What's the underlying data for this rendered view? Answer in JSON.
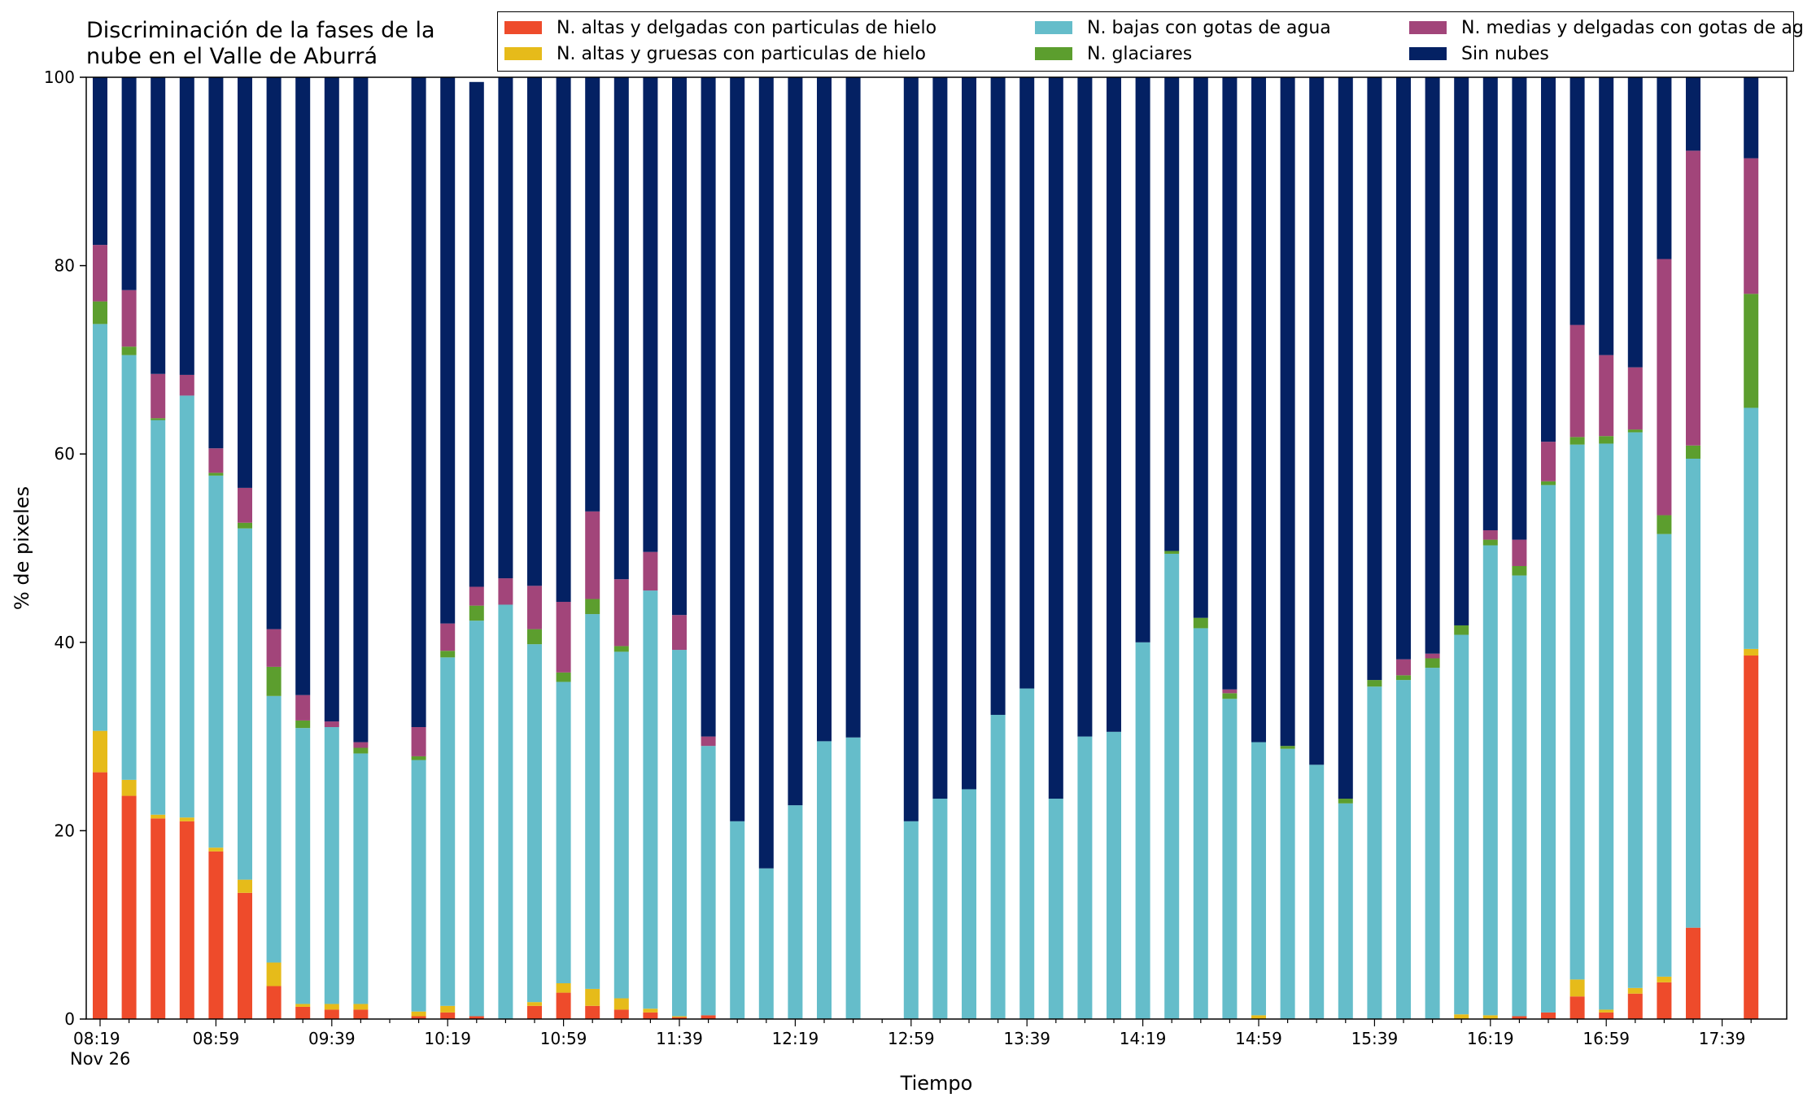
{
  "chart_data": {
    "type": "bar",
    "stacked": true,
    "title": "Discriminación de la fases de la\nnube en el Valle de Aburrá",
    "xlabel": "Tiempo",
    "ylabel": "% de pixeles",
    "ylim": [
      0,
      100
    ],
    "yticks": [
      0,
      20,
      40,
      60,
      80,
      100
    ],
    "date_label": "Nov 26",
    "legend_position": "top-right",
    "x_start": "08:19",
    "x_step_minutes": 10,
    "xticks": [
      "08:19",
      "08:59",
      "09:39",
      "10:19",
      "10:59",
      "11:39",
      "12:19",
      "12:59",
      "13:39",
      "14:19",
      "14:59",
      "15:39",
      "16:19",
      "16:59",
      "17:39"
    ],
    "x": [
      "08:19",
      "08:29",
      "08:39",
      "08:49",
      "08:59",
      "09:09",
      "09:19",
      "09:29",
      "09:39",
      "09:49",
      "09:59",
      "10:09",
      "10:19",
      "10:29",
      "10:39",
      "10:49",
      "10:59",
      "11:09",
      "11:19",
      "11:29",
      "11:39",
      "11:49",
      "11:59",
      "12:09",
      "12:19",
      "12:29",
      "12:39",
      "12:49",
      "12:59",
      "13:09",
      "13:19",
      "13:29",
      "13:39",
      "13:49",
      "13:59",
      "14:09",
      "14:19",
      "14:29",
      "14:39",
      "14:49",
      "14:59",
      "15:09",
      "15:19",
      "15:29",
      "15:39",
      "15:49",
      "15:59",
      "16:09",
      "16:19",
      "16:29",
      "16:39",
      "16:49",
      "16:59",
      "17:09",
      "17:19",
      "17:29",
      "17:39",
      "17:49"
    ],
    "series": [
      {
        "name": "N. altas y delgadas con particulas de hielo",
        "color": "#ee4b2b",
        "values": [
          26.2,
          23.7,
          21.3,
          21.0,
          17.8,
          13.4,
          3.5,
          1.3,
          1.0,
          1.0,
          null,
          0.3,
          0.7,
          0.3,
          0,
          1.4,
          2.8,
          1.4,
          1.0,
          0.7,
          0.2,
          0.4,
          0,
          0,
          0,
          0,
          0,
          null,
          0,
          0,
          0,
          0,
          0,
          0,
          0,
          0,
          0,
          0,
          0,
          0,
          0,
          0,
          0,
          0,
          0,
          0,
          0,
          0,
          0,
          0.3,
          0.7,
          2.4,
          0.7,
          2.7,
          3.9,
          9.7,
          null,
          38.6
        ]
      },
      {
        "name": "N. altas y gruesas con particulas de hielo",
        "color": "#e6bb1a",
        "values": [
          4.4,
          1.7,
          0.4,
          0.4,
          0.4,
          1.4,
          2.5,
          0.3,
          0.6,
          0.6,
          null,
          0.5,
          0.7,
          0,
          0,
          0.4,
          1.0,
          1.8,
          1.2,
          0.4,
          0.1,
          0,
          0,
          0,
          0,
          0,
          0,
          null,
          0,
          0,
          0,
          0,
          0,
          0,
          0,
          0,
          0,
          0,
          0,
          0,
          0.4,
          0,
          0,
          0,
          0,
          0,
          0,
          0.5,
          0.4,
          0,
          0,
          1.8,
          0.3,
          0.6,
          0.6,
          0,
          null,
          0.7
        ]
      },
      {
        "name": "N. bajas con gotas de agua",
        "color": "#65bdca",
        "values": [
          43.2,
          45.1,
          41.9,
          44.8,
          39.5,
          37.3,
          28.3,
          29.3,
          29.4,
          26.6,
          null,
          26.7,
          37.0,
          42.0,
          44.0,
          38.0,
          32.0,
          39.8,
          36.8,
          44.4,
          38.9,
          28.6,
          21.0,
          16.0,
          22.7,
          29.5,
          29.9,
          null,
          21.0,
          23.4,
          24.4,
          32.3,
          35.1,
          23.4,
          30.0,
          30.5,
          40.0,
          49.4,
          41.5,
          34.0,
          29.0,
          28.7,
          27.0,
          22.9,
          35.3,
          36.0,
          37.3,
          40.3,
          49.9,
          46.8,
          56.0,
          56.8,
          60.1,
          59.0,
          47.0,
          49.8,
          null,
          25.6
        ]
      },
      {
        "name": "N. glaciares",
        "color": "#5c9e2e",
        "values": [
          2.4,
          0.9,
          0.2,
          0,
          0.3,
          0.6,
          3.1,
          0.8,
          0,
          0.6,
          null,
          0.4,
          0.7,
          1.6,
          0,
          1.6,
          1.0,
          1.6,
          0.6,
          0,
          0,
          0,
          0,
          0,
          0,
          0,
          0,
          null,
          0,
          0,
          0,
          0,
          0,
          0,
          0,
          0,
          0,
          0.3,
          1.1,
          0.6,
          0,
          0.3,
          0,
          0.5,
          0.7,
          0.5,
          1.0,
          1.0,
          0.6,
          1.0,
          0.4,
          0.8,
          0.8,
          0.3,
          2.0,
          1.4,
          null,
          12.1
        ]
      },
      {
        "name": "N. medias y delgadas con gotas de agua",
        "color": "#a2457a",
        "values": [
          6.0,
          6.0,
          4.7,
          2.2,
          2.6,
          3.7,
          4.0,
          2.7,
          0.6,
          0.6,
          null,
          3.1,
          2.9,
          2.0,
          2.8,
          4.6,
          7.5,
          9.3,
          7.1,
          4.1,
          3.7,
          1.0,
          0,
          0,
          0,
          0,
          0,
          null,
          0,
          0,
          0,
          0,
          0,
          0,
          0,
          0,
          0,
          0,
          0,
          0.4,
          0,
          0,
          0,
          0,
          0,
          1.7,
          0.5,
          0,
          1.0,
          2.8,
          4.2,
          11.9,
          8.6,
          6.6,
          27.2,
          31.3,
          null,
          14.4
        ]
      },
      {
        "name": "Sin nubes",
        "color": "#042163",
        "values": [
          17.8,
          22.6,
          31.5,
          31.6,
          39.4,
          43.6,
          58.6,
          65.6,
          68.4,
          70.6,
          null,
          69.0,
          58.0,
          53.6,
          53.2,
          54.0,
          55.7,
          46.1,
          53.3,
          50.4,
          57.1,
          70.0,
          79.0,
          84.0,
          77.3,
          70.5,
          70.1,
          null,
          79.0,
          76.6,
          75.6,
          67.7,
          64.9,
          76.6,
          70.0,
          69.5,
          60.0,
          50.3,
          57.4,
          65.0,
          70.6,
          71.0,
          73.0,
          76.6,
          64.0,
          61.8,
          61.2,
          58.2,
          48.1,
          49.1,
          38.7,
          26.3,
          29.5,
          30.8,
          19.3,
          7.8,
          null,
          8.6
        ]
      }
    ]
  }
}
